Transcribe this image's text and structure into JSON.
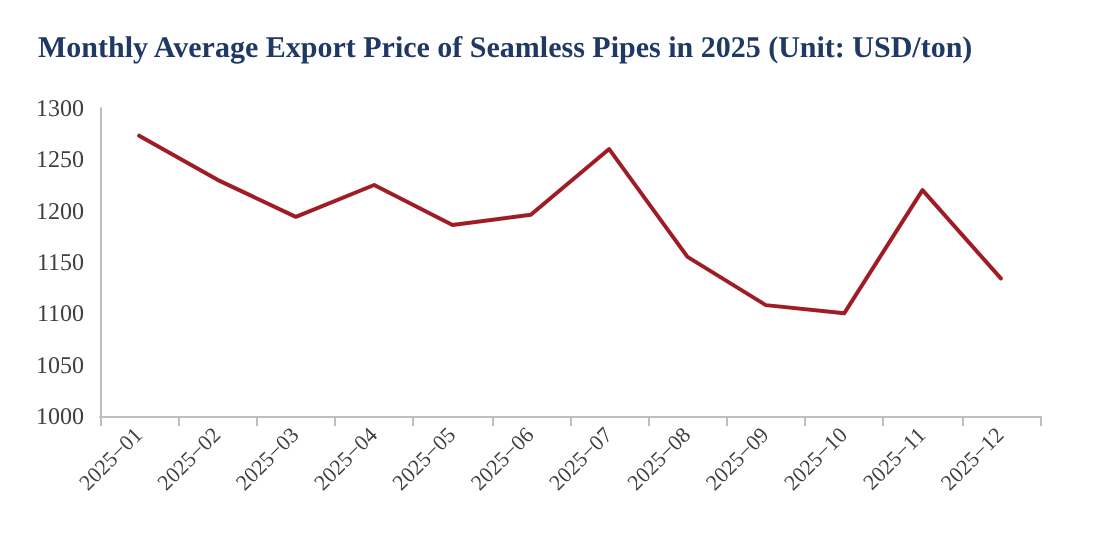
{
  "chart_data": {
    "type": "line",
    "title": "Monthly Average Export Price of Seamless Pipes in 2025 (Unit: USD/ton)",
    "categories": [
      "2025−01",
      "2025−02",
      "2025−03",
      "2025−04",
      "2025−05",
      "2025−06",
      "2025−07",
      "2025−08",
      "2025−09",
      "2025−10",
      "2025−11",
      "2025−12"
    ],
    "series": [
      {
        "color": "#a01c24",
        "values": [
          1273,
          1230,
          1194,
          1225,
          1186,
          1196,
          1260,
          1155,
          1108,
          1100,
          1220,
          1134
        ]
      }
    ],
    "ylim": [
      1000,
      1300
    ],
    "yticks": [
      1000,
      1050,
      1100,
      1150,
      1200,
      1250,
      1300
    ],
    "grid": false,
    "marker": "none",
    "line_style": "solid"
  }
}
